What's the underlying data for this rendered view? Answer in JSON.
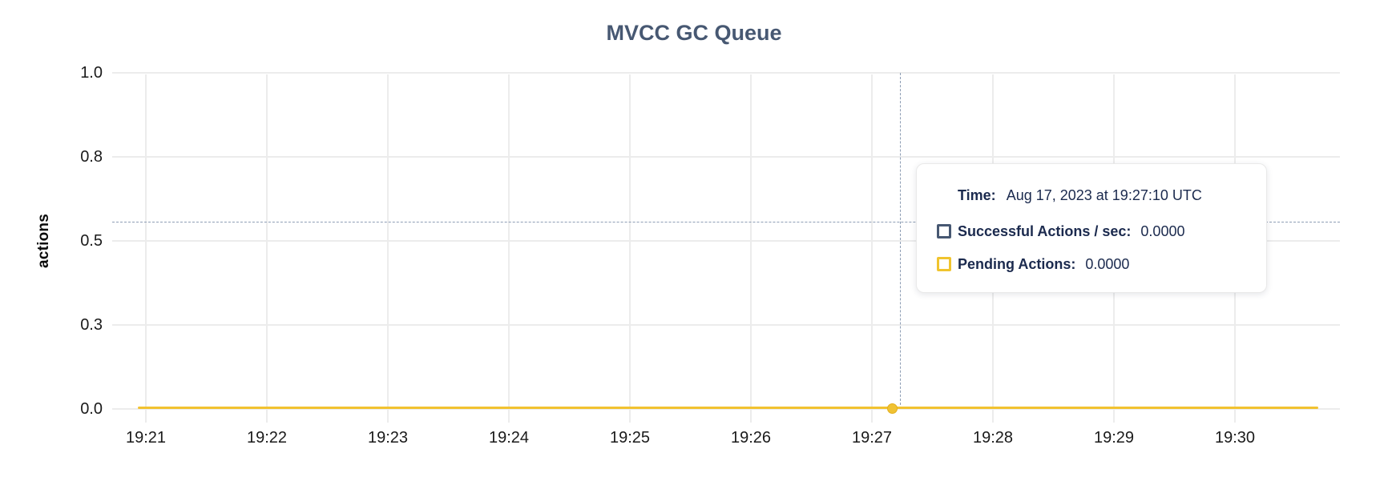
{
  "colors": {
    "title": "#475872",
    "tooltip_text": "#1b2a4e",
    "grid": "#ececec",
    "tick_text": "#1a1a1a",
    "crosshair": "#8d9db4",
    "series_successful": "#475872",
    "series_pending": "#f2c230",
    "hover_dot": "#f0c233"
  },
  "chart_data": {
    "type": "line",
    "title": "MVCC GC Queue",
    "xlabel": "",
    "ylabel": "actions",
    "x_ticks": [
      "19:21",
      "19:22",
      "19:23",
      "19:24",
      "19:25",
      "19:26",
      "19:27",
      "19:28",
      "19:29",
      "19:30"
    ],
    "y_ticks": [
      "1.0",
      "0.8",
      "0.5",
      "0.3",
      "0.0"
    ],
    "ylim": [
      0,
      1
    ],
    "grid": true,
    "legend_position": "tooltip-only",
    "series": [
      {
        "name": "Successful Actions / sec",
        "color": "#475872",
        "values": [
          0,
          0,
          0,
          0,
          0,
          0,
          0,
          0,
          0,
          0
        ]
      },
      {
        "name": "Pending Actions",
        "color": "#f2c230",
        "values": [
          0,
          0,
          0,
          0,
          0,
          0,
          0,
          0,
          0,
          0
        ]
      }
    ],
    "highlighted_point": {
      "x": "19:27:10",
      "y": 0
    },
    "crosshair": {
      "x": "19:27:14",
      "y_value": 0.56
    }
  },
  "tooltip": {
    "time_label": "Time:",
    "time_value": "Aug 17, 2023 at 19:27:10 UTC",
    "rows": [
      {
        "label": "Successful Actions / sec:",
        "value": "0.0000",
        "color": "#475872"
      },
      {
        "label": "Pending Actions:",
        "value": "0.0000",
        "color": "#f0c42e"
      }
    ]
  }
}
